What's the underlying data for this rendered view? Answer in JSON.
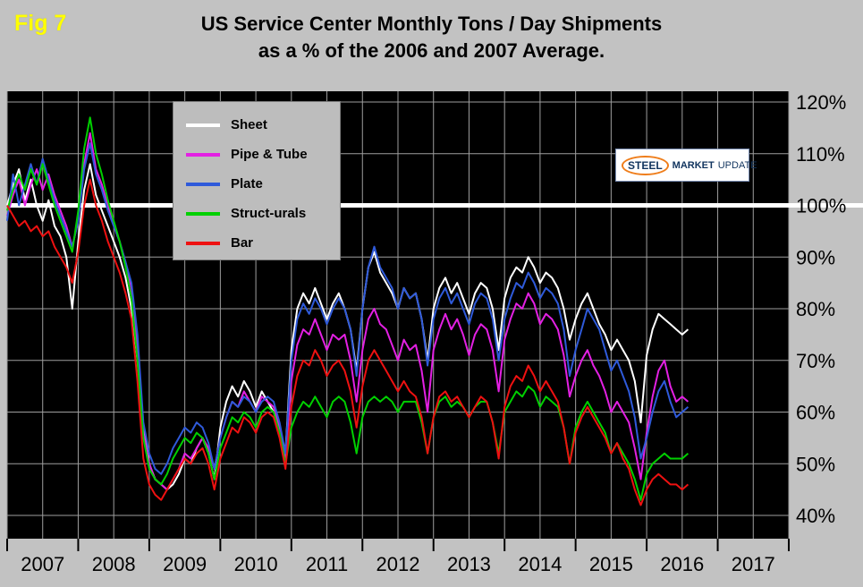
{
  "fig_label": "Fig 7",
  "title_line1": "US Service Center Monthly Tons / Day Shipments",
  "title_line2": "as a % of the 2006 and 2007 Average.",
  "logo": {
    "steel": "STEEL",
    "market": "MARKET",
    "update": "UPDATE"
  },
  "chart_data": {
    "type": "line",
    "title": "US Service Center Monthly Tons / Day Shipments as a % of the 2006 and 2007 Average.",
    "x_start": "2007-01",
    "x_interval": "month",
    "x_axis_years": [
      "2007",
      "2008",
      "2009",
      "2010",
      "2011",
      "2012",
      "2013",
      "2014",
      "2015",
      "2016",
      "2017"
    ],
    "x_range_months": 132,
    "ylim": [
      40,
      120
    ],
    "y_ticks": [
      120,
      110,
      100,
      90,
      80,
      70,
      60,
      50,
      40
    ],
    "y_tick_labels": [
      "120%",
      "110%",
      "100%",
      "90%",
      "80%",
      "70%",
      "60%",
      "50%",
      "40%"
    ],
    "reference_line": {
      "value": 100,
      "color": "#ffffff"
    },
    "grid": true,
    "legend_position": "top-left",
    "plot_bg": "#000000",
    "page_bg": "#c2c2c2",
    "grid_color": "#9e9e9e",
    "series": [
      {
        "name": "Sheet",
        "color": "#ffffff",
        "values": [
          100,
          104,
          107,
          101,
          105,
          100,
          97,
          101,
          96,
          94,
          90,
          80,
          93,
          103,
          108,
          102,
          99,
          96,
          93,
          90,
          86,
          80,
          70,
          57,
          50,
          47,
          46,
          45,
          46,
          48,
          51,
          50,
          53,
          55,
          52,
          47,
          57,
          62,
          65,
          63,
          66,
          64,
          61,
          64,
          62,
          60,
          57,
          52,
          72,
          80,
          83,
          81,
          84,
          81,
          78,
          81,
          83,
          80,
          76,
          68,
          80,
          88,
          91,
          87,
          85,
          83,
          80,
          84,
          82,
          83,
          78,
          70,
          80,
          84,
          86,
          83,
          85,
          82,
          79,
          83,
          85,
          84,
          80,
          72,
          82,
          86,
          88,
          87,
          90,
          88,
          85,
          87,
          86,
          84,
          80,
          74,
          78,
          81,
          83,
          80,
          77,
          75,
          72,
          74,
          72,
          70,
          66,
          58,
          71,
          76,
          79,
          78,
          77,
          76,
          75,
          76
        ]
      },
      {
        "name": "Pipe & Tube",
        "color": "#e320e3",
        "values": [
          98,
          102,
          105,
          100,
          104,
          107,
          103,
          106,
          102,
          99,
          96,
          92,
          97,
          108,
          114,
          107,
          104,
          100,
          96,
          93,
          89,
          84,
          72,
          56,
          50,
          47,
          46,
          45,
          47,
          49,
          52,
          51,
          53,
          55,
          53,
          49,
          55,
          59,
          62,
          61,
          64,
          62,
          60,
          63,
          62,
          61,
          57,
          51,
          66,
          73,
          76,
          75,
          78,
          75,
          72,
          75,
          74,
          75,
          70,
          62,
          72,
          78,
          80,
          77,
          76,
          73,
          70,
          74,
          72,
          73,
          68,
          60,
          72,
          76,
          79,
          76,
          78,
          75,
          71,
          75,
          77,
          76,
          72,
          64,
          74,
          78,
          81,
          80,
          83,
          81,
          77,
          79,
          78,
          76,
          71,
          63,
          67,
          70,
          72,
          69,
          67,
          64,
          60,
          62,
          60,
          58,
          53,
          47,
          56,
          63,
          68,
          70,
          65,
          62,
          63,
          62
        ]
      },
      {
        "name": "Plate",
        "color": "#2f5ada",
        "values": [
          97,
          106,
          100,
          104,
          108,
          104,
          109,
          105,
          101,
          98,
          95,
          92,
          97,
          107,
          112,
          106,
          103,
          99,
          96,
          93,
          89,
          85,
          75,
          58,
          52,
          49,
          48,
          50,
          53,
          55,
          57,
          56,
          58,
          57,
          54,
          49,
          55,
          59,
          62,
          61,
          63,
          62,
          60,
          62,
          63,
          62,
          58,
          52,
          70,
          78,
          81,
          79,
          82,
          80,
          77,
          80,
          82,
          80,
          76,
          67,
          80,
          88,
          92,
          88,
          86,
          84,
          80,
          84,
          82,
          83,
          78,
          69,
          78,
          82,
          84,
          81,
          83,
          80,
          77,
          81,
          83,
          82,
          78,
          70,
          78,
          82,
          85,
          84,
          87,
          85,
          82,
          84,
          83,
          81,
          76,
          67,
          72,
          76,
          80,
          78,
          76,
          72,
          68,
          70,
          67,
          64,
          59,
          51,
          55,
          60,
          64,
          66,
          62,
          59,
          60,
          61
        ]
      },
      {
        "name": "Struct-urals",
        "color": "#00d000",
        "values": [
          99,
          103,
          106,
          103,
          107,
          104,
          108,
          104,
          100,
          97,
          94,
          91,
          99,
          111,
          117,
          110,
          106,
          101,
          97,
          93,
          88,
          82,
          70,
          55,
          49,
          47,
          46,
          48,
          51,
          53,
          55,
          54,
          56,
          55,
          52,
          47,
          53,
          56,
          59,
          58,
          60,
          59,
          57,
          60,
          61,
          60,
          56,
          50,
          57,
          60,
          62,
          61,
          63,
          61,
          59,
          62,
          63,
          62,
          58,
          52,
          59,
          62,
          63,
          62,
          63,
          62,
          60,
          62,
          62,
          62,
          58,
          52,
          59,
          62,
          63,
          61,
          62,
          61,
          59,
          61,
          62,
          62,
          58,
          52,
          60,
          62,
          64,
          63,
          65,
          64,
          61,
          63,
          62,
          61,
          57,
          50,
          57,
          60,
          62,
          60,
          58,
          56,
          52,
          54,
          52,
          50,
          47,
          43,
          48,
          50,
          51,
          52,
          51,
          51,
          51,
          52
        ]
      },
      {
        "name": "Bar",
        "color": "#ee1111",
        "values": [
          100,
          98,
          96,
          97,
          95,
          96,
          94,
          95,
          92,
          90,
          88,
          85,
          91,
          100,
          105,
          100,
          97,
          93,
          90,
          87,
          83,
          78,
          66,
          51,
          46,
          44,
          43,
          45,
          47,
          49,
          51,
          50,
          52,
          53,
          50,
          45,
          51,
          54,
          57,
          56,
          59,
          58,
          56,
          59,
          60,
          59,
          55,
          49,
          61,
          67,
          70,
          69,
          72,
          70,
          67,
          69,
          70,
          68,
          64,
          57,
          65,
          70,
          72,
          70,
          68,
          66,
          64,
          66,
          64,
          63,
          59,
          52,
          59,
          63,
          64,
          62,
          63,
          61,
          59,
          61,
          63,
          62,
          58,
          51,
          61,
          65,
          67,
          66,
          69,
          67,
          64,
          66,
          64,
          62,
          57,
          50,
          56,
          59,
          61,
          59,
          57,
          55,
          52,
          54,
          51,
          49,
          45,
          42,
          45,
          47,
          48,
          47,
          46,
          46,
          45,
          46
        ]
      }
    ]
  }
}
